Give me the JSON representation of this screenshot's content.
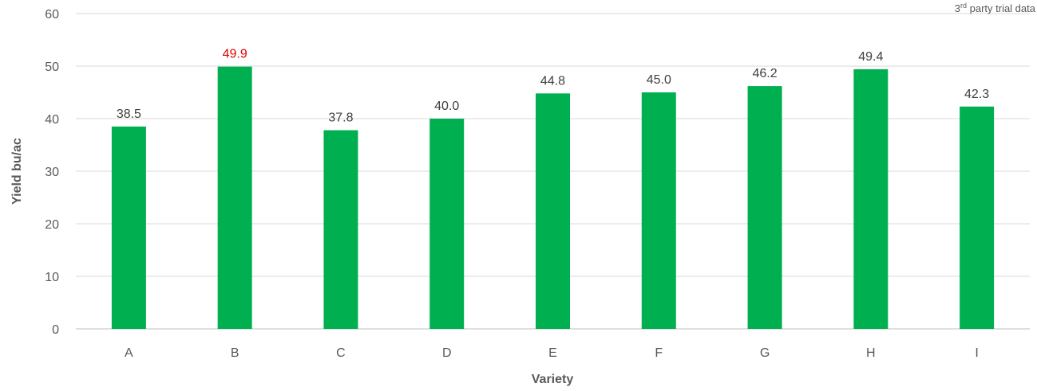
{
  "chart_data": {
    "type": "bar",
    "title": "",
    "xlabel": "Variety",
    "ylabel": "Yield bu/ac",
    "ylim": [
      0,
      60
    ],
    "yticks": [
      0,
      10,
      20,
      30,
      40,
      50,
      60
    ],
    "grid": true,
    "categories": [
      "A",
      "B",
      "C",
      "D",
      "E",
      "F",
      "G",
      "H",
      "I"
    ],
    "values": [
      38.5,
      49.9,
      37.8,
      40.0,
      44.8,
      45.0,
      46.2,
      49.4,
      42.3
    ],
    "value_labels": [
      "38.5",
      "49.9",
      "37.8",
      "40.0",
      "44.8",
      "45.0",
      "46.2",
      "49.4",
      "42.3"
    ],
    "highlight_index": 1,
    "bar_color": "#00B050",
    "label_color": "#404040",
    "highlight_label_color": "#E00000",
    "annotation": "3rd party trial data"
  }
}
